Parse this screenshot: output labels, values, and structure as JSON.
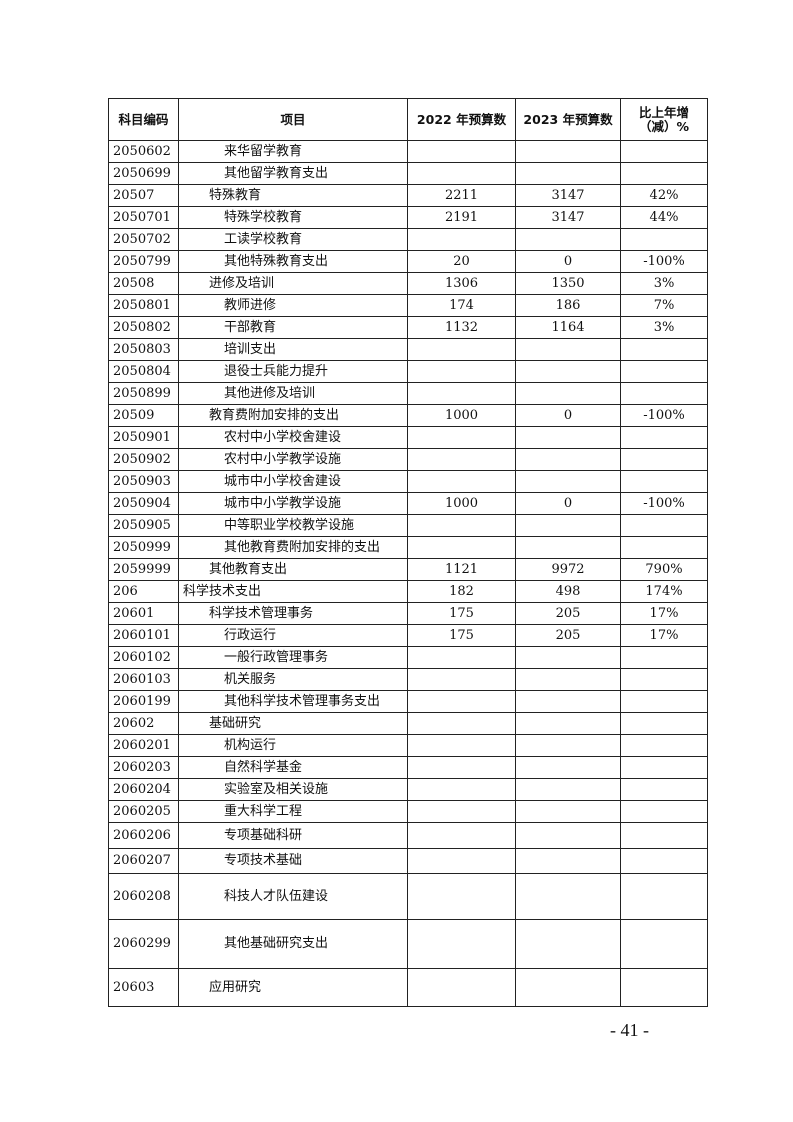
{
  "table": {
    "headers": [
      "科目编码",
      "项目",
      "2022 年预算数",
      "2023 年预算数",
      "比上年增（减）%"
    ],
    "rows": [
      {
        "code": "2050602",
        "name": "来华留学教育",
        "level": 2,
        "v2022": "",
        "v2023": "",
        "change": ""
      },
      {
        "code": "2050699",
        "name": "其他留学教育支出",
        "level": 2,
        "v2022": "",
        "v2023": "",
        "change": ""
      },
      {
        "code": "20507",
        "name": "特殊教育",
        "level": 1,
        "v2022": "2211",
        "v2023": "3147",
        "change": "42%"
      },
      {
        "code": "2050701",
        "name": "特殊学校教育",
        "level": 2,
        "v2022": "2191",
        "v2023": "3147",
        "change": "44%"
      },
      {
        "code": "2050702",
        "name": "工读学校教育",
        "level": 2,
        "v2022": "",
        "v2023": "",
        "change": ""
      },
      {
        "code": "2050799",
        "name": "其他特殊教育支出",
        "level": 2,
        "v2022": "20",
        "v2023": "0",
        "change": "-100%"
      },
      {
        "code": "20508",
        "name": "进修及培训",
        "level": 1,
        "v2022": "1306",
        "v2023": "1350",
        "change": "3%"
      },
      {
        "code": "2050801",
        "name": "教师进修",
        "level": 2,
        "v2022": "174",
        "v2023": "186",
        "change": "7%"
      },
      {
        "code": "2050802",
        "name": "干部教育",
        "level": 2,
        "v2022": "1132",
        "v2023": "1164",
        "change": "3%"
      },
      {
        "code": "2050803",
        "name": "培训支出",
        "level": 2,
        "v2022": "",
        "v2023": "",
        "change": ""
      },
      {
        "code": "2050804",
        "name": "退役士兵能力提升",
        "level": 2,
        "v2022": "",
        "v2023": "",
        "change": ""
      },
      {
        "code": "2050899",
        "name": "其他进修及培训",
        "level": 2,
        "v2022": "",
        "v2023": "",
        "change": ""
      },
      {
        "code": "20509",
        "name": "教育费附加安排的支出",
        "level": 1,
        "v2022": "1000",
        "v2023": "0",
        "change": "-100%"
      },
      {
        "code": "2050901",
        "name": "农村中小学校舍建设",
        "level": 2,
        "v2022": "",
        "v2023": "",
        "change": ""
      },
      {
        "code": "2050902",
        "name": "农村中小学教学设施",
        "level": 2,
        "v2022": "",
        "v2023": "",
        "change": ""
      },
      {
        "code": "2050903",
        "name": "城市中小学校舍建设",
        "level": 2,
        "v2022": "",
        "v2023": "",
        "change": ""
      },
      {
        "code": "2050904",
        "name": "城市中小学教学设施",
        "level": 2,
        "v2022": "1000",
        "v2023": "0",
        "change": "-100%"
      },
      {
        "code": "2050905",
        "name": "中等职业学校教学设施",
        "level": 2,
        "v2022": "",
        "v2023": "",
        "change": ""
      },
      {
        "code": "2050999",
        "name": "其他教育费附加安排的支出",
        "level": 2,
        "v2022": "",
        "v2023": "",
        "change": ""
      },
      {
        "code": "2059999",
        "name": "其他教育支出",
        "level": 1,
        "v2022": "1121",
        "v2023": "9972",
        "change": "790%"
      },
      {
        "code": "206",
        "name": "科学技术支出",
        "level": 0,
        "v2022": "182",
        "v2023": "498",
        "change": "174%"
      },
      {
        "code": "20601",
        "name": "科学技术管理事务",
        "level": 1,
        "v2022": "175",
        "v2023": "205",
        "change": "17%"
      },
      {
        "code": "2060101",
        "name": "行政运行",
        "level": 2,
        "v2022": "175",
        "v2023": "205",
        "change": "17%"
      },
      {
        "code": "2060102",
        "name": "一般行政管理事务",
        "level": 2,
        "v2022": "",
        "v2023": "",
        "change": ""
      },
      {
        "code": "2060103",
        "name": "机关服务",
        "level": 2,
        "v2022": "",
        "v2023": "",
        "change": ""
      },
      {
        "code": "2060199",
        "name": "其他科学技术管理事务支出",
        "level": 2,
        "v2022": "",
        "v2023": "",
        "change": ""
      },
      {
        "code": "20602",
        "name": "基础研究",
        "level": 1,
        "v2022": "",
        "v2023": "",
        "change": ""
      },
      {
        "code": "2060201",
        "name": "机构运行",
        "level": 2,
        "v2022": "",
        "v2023": "",
        "change": ""
      },
      {
        "code": "2060203",
        "name": "自然科学基金",
        "level": 2,
        "v2022": "",
        "v2023": "",
        "change": ""
      },
      {
        "code": "2060204",
        "name": "实验室及相关设施",
        "level": 2,
        "v2022": "",
        "v2023": "",
        "change": ""
      },
      {
        "code": "2060205",
        "name": "重大科学工程",
        "level": 2,
        "v2022": "",
        "v2023": "",
        "change": ""
      },
      {
        "code": "2060206",
        "name": "专项基础科研",
        "level": 2,
        "v2022": "",
        "v2023": "",
        "change": ""
      },
      {
        "code": "2060207",
        "name": "专项技术基础",
        "level": 2,
        "v2022": "",
        "v2023": "",
        "change": ""
      },
      {
        "code": "2060208",
        "name": "科技人才队伍建设",
        "level": 2,
        "v2022": "",
        "v2023": "",
        "change": ""
      },
      {
        "code": "2060299",
        "name": "其他基础研究支出",
        "level": 2,
        "v2022": "",
        "v2023": "",
        "change": ""
      },
      {
        "code": "20603",
        "name": "应用研究",
        "level": 1,
        "v2022": "",
        "v2023": "",
        "change": ""
      }
    ]
  },
  "page_number": "- 41 -"
}
